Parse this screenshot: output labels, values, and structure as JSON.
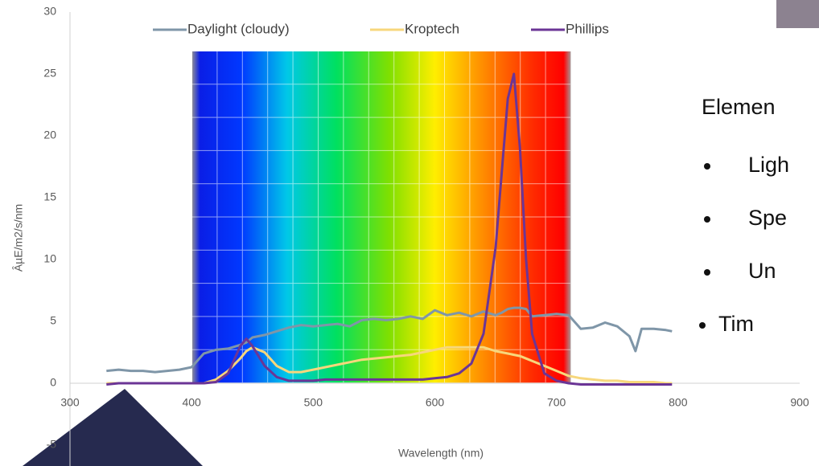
{
  "chart_data": {
    "type": "line",
    "x": [
      330,
      340,
      350,
      360,
      370,
      380,
      390,
      400,
      410,
      420,
      430,
      440,
      445,
      450,
      460,
      470,
      480,
      490,
      500,
      510,
      520,
      530,
      540,
      550,
      560,
      570,
      580,
      590,
      600,
      610,
      620,
      630,
      640,
      650,
      655,
      660,
      665,
      670,
      675,
      680,
      690,
      700,
      710,
      720,
      730,
      740,
      750,
      760,
      765,
      770,
      780,
      790,
      795
    ],
    "series": [
      {
        "name": "Daylight (cloudy)",
        "color": "#7f96a8",
        "values": [
          1,
          1.1,
          1,
          1,
          0.9,
          1,
          1.1,
          1.3,
          2.4,
          2.7,
          2.8,
          3.1,
          3.3,
          3.7,
          3.9,
          4.2,
          4.5,
          4.7,
          4.6,
          4.7,
          4.8,
          4.6,
          5.1,
          5.2,
          5.1,
          5.2,
          5.4,
          5.2,
          5.9,
          5.5,
          5.7,
          5.4,
          5.8,
          5.5,
          5.7,
          6,
          6.1,
          6.1,
          6,
          5.4,
          5.5,
          5.6,
          5.5,
          4.4,
          4.5,
          4.9,
          4.6,
          3.8,
          2.6,
          4.4,
          4.4,
          4.3,
          4.2
        ]
      },
      {
        "name": "Kroptech",
        "color": "#f7d77c",
        "values": [
          0,
          0,
          0,
          0,
          0,
          0,
          0,
          0,
          0,
          0.3,
          1,
          2,
          2.6,
          2.9,
          2.5,
          1.4,
          0.9,
          0.9,
          1.1,
          1.3,
          1.5,
          1.7,
          1.9,
          2,
          2.1,
          2.2,
          2.3,
          2.5,
          2.7,
          2.9,
          2.9,
          2.9,
          2.9,
          2.6,
          2.5,
          2.4,
          2.3,
          2.2,
          2,
          1.8,
          1.4,
          1,
          0.6,
          0.4,
          0.3,
          0.2,
          0.2,
          0.1,
          0.1,
          0.1,
          0.1,
          0,
          0
        ]
      },
      {
        "name": "Phillips",
        "color": "#6b3596",
        "values": [
          -0.1,
          0,
          0,
          0,
          0,
          0,
          0,
          0,
          0,
          0.1,
          0.8,
          3,
          3.6,
          3,
          1.4,
          0.5,
          0.2,
          0.2,
          0.2,
          0.3,
          0.3,
          0.3,
          0.3,
          0.3,
          0.3,
          0.3,
          0.3,
          0.3,
          0.4,
          0.5,
          0.8,
          1.6,
          4,
          11,
          17,
          23,
          25,
          19,
          10,
          4,
          0.8,
          0.2,
          0,
          -0.1,
          -0.1,
          -0.1,
          -0.1,
          -0.1,
          -0.1,
          -0.1,
          -0.1,
          -0.1,
          -0.1
        ]
      }
    ],
    "xlim": [
      300,
      900
    ],
    "xticks": [
      300,
      400,
      500,
      600,
      700,
      800,
      900
    ],
    "ylim": [
      -5,
      30
    ],
    "yticks": [
      -5,
      0,
      5,
      10,
      15,
      20,
      25,
      30
    ],
    "xlabel": "Wavelength (nm)",
    "ylabel": "ÂµE/m2/s/nm"
  },
  "slide": {
    "heading": "Elemen",
    "bullets": [
      "Ligh",
      "Spe",
      "Un",
      "Tim"
    ]
  }
}
